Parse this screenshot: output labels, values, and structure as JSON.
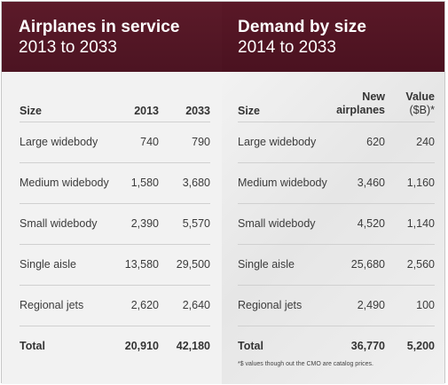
{
  "left": {
    "title": "Airplanes in service",
    "subtitle": "2013 to 2033",
    "columns": [
      "Size",
      "2013",
      "2033"
    ],
    "rows": [
      [
        "Large widebody",
        "740",
        "790"
      ],
      [
        "Medium widebody",
        "1,580",
        "3,680"
      ],
      [
        "Small widebody",
        "2,390",
        "5,570"
      ],
      [
        "Single aisle",
        "13,580",
        "29,500"
      ],
      [
        "Regional jets",
        "2,620",
        "2,640"
      ]
    ],
    "total": [
      "Total",
      "20,910",
      "42,180"
    ]
  },
  "right": {
    "title": "Demand by size",
    "subtitle": "2014 to 2033",
    "columns": [
      "Size",
      "New",
      "airplanes",
      "Value",
      "($B)*"
    ],
    "rows": [
      [
        "Large widebody",
        "620",
        "240"
      ],
      [
        "Medium widebody",
        "3,460",
        "1,160"
      ],
      [
        "Small widebody",
        "4,520",
        "1,140"
      ],
      [
        "Single aisle",
        "25,680",
        "2,560"
      ],
      [
        "Regional jets",
        "2,490",
        "100"
      ]
    ],
    "total": [
      "Total",
      "36,770",
      "5,200"
    ],
    "footnote": "*$ values though out the CMO are catalog prices."
  },
  "colors": {
    "header_bg": "#551726",
    "header_text": "#ffffff",
    "panel_bg": "#f2f2f2",
    "rule": "#d0d0d0"
  }
}
